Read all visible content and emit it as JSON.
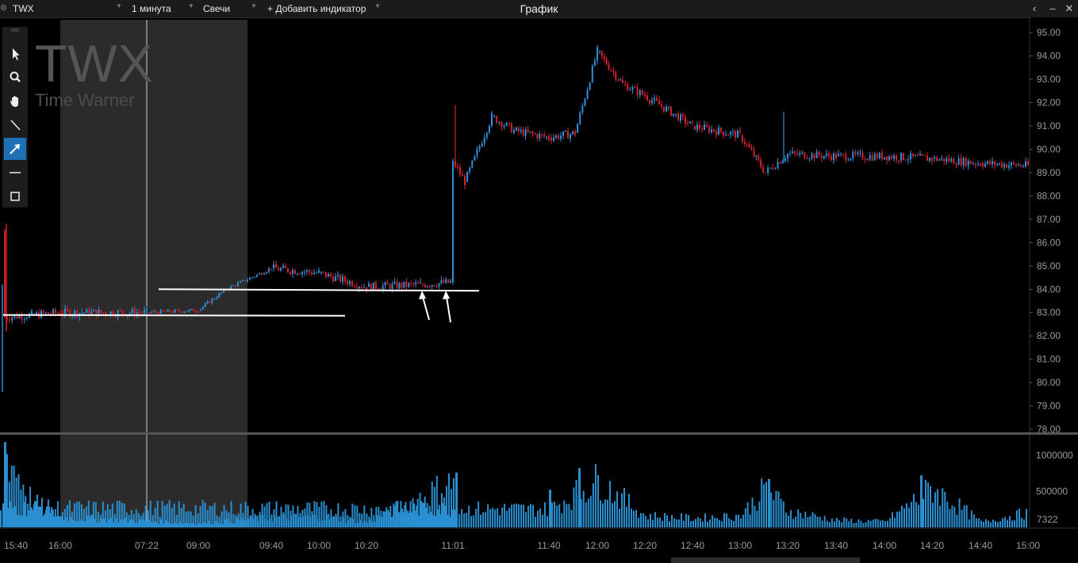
{
  "header": {
    "ticker": "TWX",
    "interval": "1 минута",
    "chart_type": "Свечи",
    "add_indicator": "+ Добавить индикатор",
    "title": "График"
  },
  "watermark": {
    "ticker": "TWX",
    "name": "Time Warner"
  },
  "tools": [
    "cursor-icon",
    "zoom-icon",
    "hand-icon",
    "line-icon",
    "arrow-icon",
    "horizontal-line-icon",
    "rectangle-icon"
  ],
  "colors": {
    "up": "#2f8fd8",
    "down": "#d6202a",
    "volume": "#2a8fd0",
    "highlight_price": "#e0322e",
    "premarket_shade": "#2b2b2b"
  },
  "chart_data": {
    "type": "candlestick",
    "symbol": "TWX",
    "ylim": [
      78,
      95.5
    ],
    "y_ticks": [
      "95.00",
      "94.00",
      "93.00",
      "92.00",
      "91.00",
      "90.00",
      "89.00",
      "88.00",
      "87.00",
      "86.00",
      "85.00",
      "84.00",
      "83.00",
      "82.00",
      "81.00",
      "80.00",
      "79.00",
      "78.00"
    ],
    "highlighted_tick": "92.00",
    "x_ticks": [
      "15:40",
      "16:00",
      "07:22",
      "09:00",
      "09:40",
      "10:00",
      "10:20",
      "11:01",
      "11:40",
      "12:00",
      "12:20",
      "12:40",
      "13:00",
      "13:20",
      "13:40",
      "14:00",
      "14:20",
      "14:40",
      "15:00"
    ],
    "price_path": [
      {
        "time": "15:40",
        "price": 86.5
      },
      {
        "time": "15:41",
        "price": 82.8
      },
      {
        "time": "15:50",
        "price": 82.9
      },
      {
        "time": "16:00",
        "price": 83.0
      },
      {
        "time": "07:22",
        "price": 83.0
      },
      {
        "time": "09:00",
        "price": 83.1
      },
      {
        "time": "09:20",
        "price": 84.0
      },
      {
        "time": "09:40",
        "price": 84.9
      },
      {
        "time": "10:00",
        "price": 84.7
      },
      {
        "time": "10:20",
        "price": 84.1
      },
      {
        "time": "10:50",
        "price": 84.2
      },
      {
        "time": "11:01",
        "price": 84.3
      },
      {
        "time": "11:01",
        "price": 89.5
      },
      {
        "time": "11:05",
        "price": 88.6
      },
      {
        "time": "11:15",
        "price": 91.4
      },
      {
        "time": "11:25",
        "price": 90.8
      },
      {
        "time": "11:40",
        "price": 90.5
      },
      {
        "time": "11:50",
        "price": 90.7
      },
      {
        "time": "12:00",
        "price": 94.2
      },
      {
        "time": "12:10",
        "price": 92.8
      },
      {
        "time": "12:20",
        "price": 92.3
      },
      {
        "time": "12:40",
        "price": 91.0
      },
      {
        "time": "13:00",
        "price": 90.6
      },
      {
        "time": "13:10",
        "price": 89.0
      },
      {
        "time": "13:20",
        "price": 89.8
      },
      {
        "time": "13:40",
        "price": 89.7
      },
      {
        "time": "14:00",
        "price": 89.7
      },
      {
        "time": "14:20",
        "price": 89.6
      },
      {
        "time": "14:40",
        "price": 89.4
      },
      {
        "time": "15:00",
        "price": 89.3
      }
    ],
    "annotations": {
      "support_lines": [
        {
          "price": 83.0,
          "from": "15:40",
          "to": "10:20"
        },
        {
          "price": 84.0,
          "from": "07:22",
          "to": "11:05"
        }
      ],
      "arrows": 2
    },
    "volume": {
      "y_ticks": [
        "1000000",
        "500000"
      ],
      "last_value_label": "7322",
      "bars": [
        {
          "time": "15:40",
          "value": 1200000
        },
        {
          "time": "15:50",
          "value": 400000
        },
        {
          "time": "16:00",
          "value": 150000
        },
        {
          "time": "09:00",
          "value": 60000
        },
        {
          "time": "09:40",
          "value": 150000
        },
        {
          "time": "10:00",
          "value": 160000
        },
        {
          "time": "10:20",
          "value": 80000
        },
        {
          "time": "11:01",
          "value": 700000
        },
        {
          "time": "11:20",
          "value": 300000
        },
        {
          "time": "11:40",
          "value": 280000
        },
        {
          "time": "12:00",
          "value": 720000
        },
        {
          "time": "12:20",
          "value": 180000
        },
        {
          "time": "12:40",
          "value": 140000
        },
        {
          "time": "13:00",
          "value": 180000
        },
        {
          "time": "13:10",
          "value": 600000
        },
        {
          "time": "13:20",
          "value": 250000
        },
        {
          "time": "13:40",
          "value": 110000
        },
        {
          "time": "14:00",
          "value": 90000
        },
        {
          "time": "14:20",
          "value": 600000
        },
        {
          "time": "14:40",
          "value": 80000
        },
        {
          "time": "15:00",
          "value": 230000
        }
      ]
    }
  }
}
